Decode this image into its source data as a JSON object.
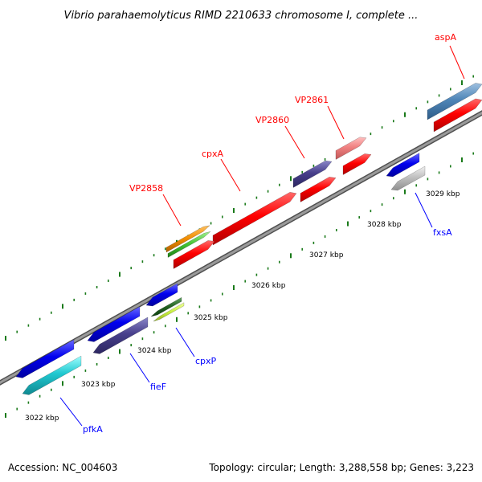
{
  "title": "Vibrio parahaemolyticus RIMD 2210633 chromosome I, complete ...",
  "accession": "Accession: NC_004603",
  "summary": "Topology: circular; Length: 3,288,558 bp; Genes: 3,223",
  "ticks": [
    "3022 kbp",
    "3023 kbp",
    "3024 kbp",
    "3025 kbp",
    "3026 kbp",
    "3027 kbp",
    "3028 kbp",
    "3029 kbp"
  ],
  "gene_labels": {
    "aspA": "aspA",
    "VP2861": "VP2861",
    "VP2860": "VP2860",
    "cpxA": "cpxA",
    "VP2858": "VP2858",
    "fxsA": "fxsA",
    "cpxP": "cpxP",
    "fieF": "fieF",
    "pfkA": "pfkA"
  },
  "colors": {
    "backbone": "#8c8c8c",
    "cds": "#ff0000",
    "gene_label_forward": "#ff0000",
    "gene_label_reverse": "#0000ff",
    "tick_dots": "#1a7a1a"
  }
}
